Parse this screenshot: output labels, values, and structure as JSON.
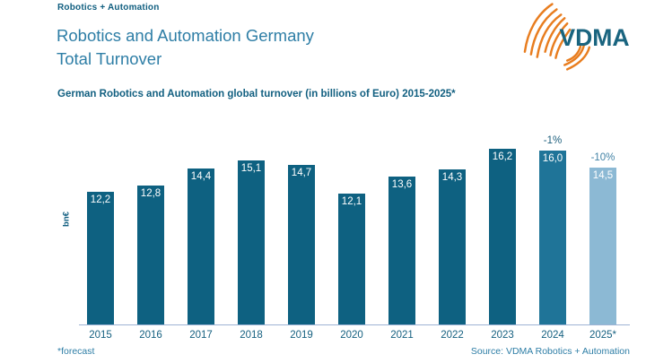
{
  "page": {
    "eyebrow": "Robotics + Automation",
    "title_line1": "Robotics and Automation Germany",
    "title_line2": "Total Turnover",
    "subtitle": "German Robotics and Automation global turnover (in billions of Euro) 2015-2025*",
    "footnote": "*forecast",
    "source": "Source: VDMA Robotics + Automation"
  },
  "logo": {
    "text": "VDMA",
    "arc_color": "#e87d1f",
    "text_color": "#19647f"
  },
  "chart_data": {
    "type": "bar",
    "title": "German Robotics and Automation global turnover (in billions of Euro) 2015-2025*",
    "categories": [
      "2015",
      "2016",
      "2017",
      "2018",
      "2019",
      "2020",
      "2021",
      "2022",
      "2023",
      "2024",
      "2025*"
    ],
    "values": [
      12.2,
      12.8,
      14.4,
      15.1,
      14.7,
      12.1,
      13.6,
      14.3,
      16.2,
      16.0,
      14.5
    ],
    "value_labels": [
      "12,2",
      "12,8",
      "14,4",
      "15,1",
      "14,7",
      "12,1",
      "13,6",
      "14,3",
      "16,2",
      "16,0",
      "14,5"
    ],
    "bar_colors": [
      "#0e6181",
      "#0e6181",
      "#0e6181",
      "#0e6181",
      "#0e6181",
      "#0e6181",
      "#0e6181",
      "#0e6181",
      "#0e6181",
      "#1f7498",
      "#8cb9d4"
    ],
    "annotations": [
      {
        "category": "2024",
        "text": "-1%",
        "color": "#1d5f7d"
      },
      {
        "category": "2025*",
        "text": "-10%",
        "color": "#4283a6"
      }
    ],
    "xlabel": "",
    "ylabel": "bn€",
    "ylim": [
      0,
      17
    ],
    "grid": false,
    "legend": "none",
    "value_labels_position": "inside-top",
    "unit": "billions of Euro"
  },
  "colors": {
    "bar_default": "#0e6181",
    "bar_2024": "#1f7498",
    "bar_forecast": "#8cb9d4",
    "title_blue": "#2e7ea6",
    "dark_teal": "#115f80",
    "axis_line": "#9eb3d4",
    "logo_orange": "#e87d1f"
  }
}
